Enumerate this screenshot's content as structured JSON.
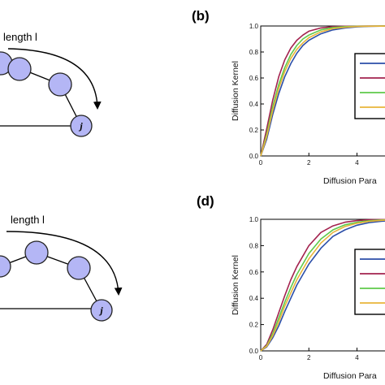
{
  "panels": {
    "b": {
      "letter": "(b)"
    },
    "d": {
      "letter": "(d)"
    }
  },
  "diagrams": {
    "top": {
      "path_label": "length l",
      "end_node_label": "j"
    },
    "bottom": {
      "path_label": "length l",
      "end_node_label": "j"
    }
  },
  "chart_data": [
    {
      "id": "b",
      "type": "line",
      "xlabel": "Diffusion Para",
      "ylabel": "Diffusion Kernel",
      "xlim": [
        0,
        5.4
      ],
      "ylim": [
        0,
        1.0
      ],
      "x_ticks": [
        "0",
        "2",
        "4"
      ],
      "x_tick_values": [
        0,
        2,
        4
      ],
      "y_ticks": [
        "0.0",
        "0.2",
        "0.4",
        "0.6",
        "0.8",
        "1.0"
      ],
      "y_tick_values": [
        0,
        0.2,
        0.4,
        0.6,
        0.8,
        1.0
      ],
      "legend": "right",
      "grid": false,
      "series": [
        {
          "color": "#2b4ea8",
          "x": [
            0,
            0.25,
            0.5,
            0.75,
            1.0,
            1.25,
            1.5,
            1.75,
            2.0,
            2.5,
            3.0,
            3.5,
            4.0,
            4.5,
            5.0,
            5.4
          ],
          "values": [
            0,
            0.13,
            0.32,
            0.48,
            0.61,
            0.71,
            0.79,
            0.85,
            0.89,
            0.94,
            0.97,
            0.985,
            0.993,
            0.997,
            0.999,
            1.0
          ]
        },
        {
          "color": "#a3224e",
          "x": [
            0,
            0.25,
            0.5,
            0.75,
            1.0,
            1.25,
            1.5,
            1.75,
            2.0,
            2.5,
            3.0,
            3.5,
            4.0,
            4.5,
            5.0,
            5.4
          ],
          "values": [
            0,
            0.21,
            0.43,
            0.61,
            0.74,
            0.83,
            0.89,
            0.93,
            0.96,
            0.985,
            0.995,
            0.998,
            0.999,
            1.0,
            1.0,
            1.0
          ]
        },
        {
          "color": "#5ec94a",
          "x": [
            0,
            0.25,
            0.5,
            0.75,
            1.0,
            1.25,
            1.5,
            1.75,
            2.0,
            2.5,
            3.0,
            3.5,
            4.0,
            4.5,
            5.0,
            5.4
          ],
          "values": [
            0,
            0.17,
            0.38,
            0.55,
            0.68,
            0.78,
            0.85,
            0.9,
            0.93,
            0.97,
            0.988,
            0.995,
            0.998,
            0.999,
            1.0,
            1.0
          ]
        },
        {
          "color": "#e8b43a",
          "x": [
            0,
            0.25,
            0.5,
            0.75,
            1.0,
            1.25,
            1.5,
            1.75,
            2.0,
            2.5,
            3.0,
            3.5,
            4.0,
            4.5,
            5.0,
            5.4
          ],
          "values": [
            0,
            0.15,
            0.35,
            0.52,
            0.65,
            0.75,
            0.82,
            0.87,
            0.91,
            0.955,
            0.98,
            0.99,
            0.996,
            0.998,
            0.999,
            1.0
          ]
        }
      ]
    },
    {
      "id": "d",
      "type": "line",
      "xlabel": "Diffusion Para",
      "ylabel": "Diffusion Kernel",
      "xlim": [
        0,
        5.4
      ],
      "ylim": [
        0,
        1.0
      ],
      "x_ticks": [
        "0",
        "2",
        "4"
      ],
      "x_tick_values": [
        0,
        2,
        4
      ],
      "y_ticks": [
        "0.0",
        "0.2",
        "0.4",
        "0.6",
        "0.8",
        "1.0"
      ],
      "y_tick_values": [
        0,
        0.2,
        0.4,
        0.6,
        0.8,
        1.0
      ],
      "legend": "right",
      "grid": false,
      "series": [
        {
          "color": "#2b4ea8",
          "x": [
            0,
            0.25,
            0.5,
            0.75,
            1.0,
            1.25,
            1.5,
            2.0,
            2.5,
            3.0,
            3.5,
            4.0,
            4.5,
            5.0,
            5.4
          ],
          "values": [
            0,
            0.03,
            0.1,
            0.19,
            0.3,
            0.4,
            0.5,
            0.66,
            0.78,
            0.87,
            0.92,
            0.955,
            0.975,
            0.985,
            0.99
          ]
        },
        {
          "color": "#a3224e",
          "x": [
            0,
            0.25,
            0.5,
            0.75,
            1.0,
            1.25,
            1.5,
            2.0,
            2.5,
            3.0,
            3.5,
            4.0,
            4.5,
            5.0,
            5.4
          ],
          "values": [
            0,
            0.05,
            0.16,
            0.29,
            0.42,
            0.54,
            0.64,
            0.8,
            0.9,
            0.95,
            0.978,
            0.99,
            0.996,
            0.998,
            0.999
          ]
        },
        {
          "color": "#5ec94a",
          "x": [
            0,
            0.25,
            0.5,
            0.75,
            1.0,
            1.25,
            1.5,
            2.0,
            2.5,
            3.0,
            3.5,
            4.0,
            4.5,
            5.0,
            5.4
          ],
          "values": [
            0,
            0.04,
            0.13,
            0.25,
            0.37,
            0.48,
            0.58,
            0.74,
            0.85,
            0.92,
            0.958,
            0.978,
            0.989,
            0.995,
            0.997
          ]
        },
        {
          "color": "#e8b43a",
          "x": [
            0,
            0.25,
            0.5,
            0.75,
            1.0,
            1.25,
            1.5,
            2.0,
            2.5,
            3.0,
            3.5,
            4.0,
            4.5,
            5.0,
            5.4
          ],
          "values": [
            0,
            0.035,
            0.115,
            0.22,
            0.34,
            0.44,
            0.54,
            0.7,
            0.82,
            0.9,
            0.945,
            0.97,
            0.984,
            0.992,
            0.996
          ]
        }
      ]
    }
  ]
}
